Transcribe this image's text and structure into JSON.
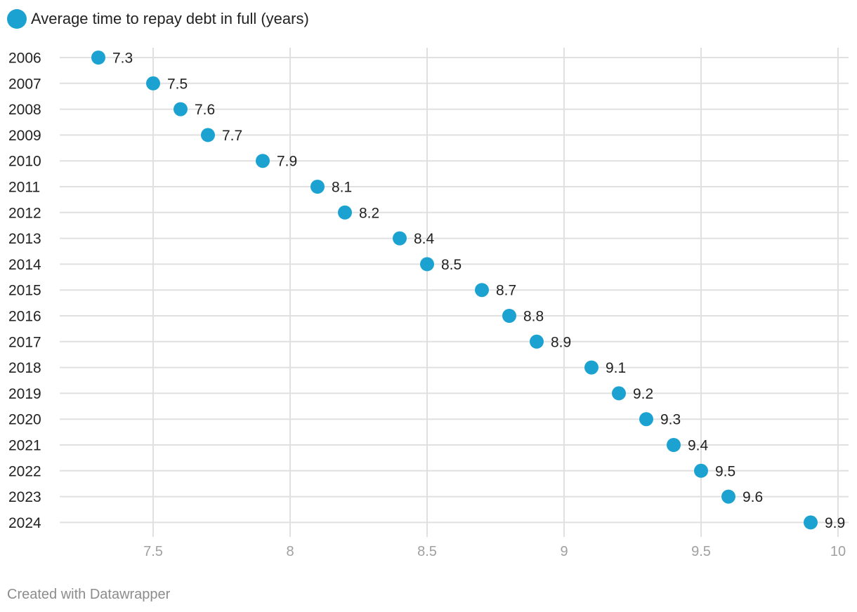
{
  "chart_data": {
    "type": "scatter",
    "legend": {
      "label": "Average time to repay debt in full (years)",
      "color": "#1ba2d1",
      "placement": "top-left"
    },
    "categories": [
      "2006",
      "2007",
      "2008",
      "2009",
      "2010",
      "2011",
      "2012",
      "2013",
      "2014",
      "2015",
      "2016",
      "2017",
      "2018",
      "2019",
      "2020",
      "2021",
      "2022",
      "2023",
      "2024"
    ],
    "series": [
      {
        "name": "Average time to repay debt in full (years)",
        "values": [
          7.3,
          7.5,
          7.6,
          7.7,
          7.9,
          8.1,
          8.2,
          8.4,
          8.5,
          8.7,
          8.8,
          8.9,
          9.1,
          9.2,
          9.3,
          9.4,
          9.5,
          9.6,
          9.9
        ],
        "value_labels": [
          "7.3",
          "7.5",
          "7.6",
          "7.7",
          "7.9",
          "8.1",
          "8.2",
          "8.4",
          "8.5",
          "8.7",
          "8.8",
          "8.9",
          "9.1",
          "9.2",
          "9.3",
          "9.4",
          "9.5",
          "9.6",
          "9.9"
        ]
      }
    ],
    "x_ticks": [
      7.5,
      8,
      8.5,
      9,
      9.5,
      10
    ],
    "x_tick_labels": [
      "7.5",
      "8",
      "8.5",
      "9",
      "9.5",
      "10"
    ],
    "xlim": [
      7.17,
      10.04
    ],
    "grid": true,
    "colors": {
      "marker": "#1ba2d1",
      "grid": "#e0e0e0",
      "tick_text": "#a0a0a0",
      "text": "#222222"
    }
  },
  "footer": {
    "credit": "Created with Datawrapper"
  }
}
